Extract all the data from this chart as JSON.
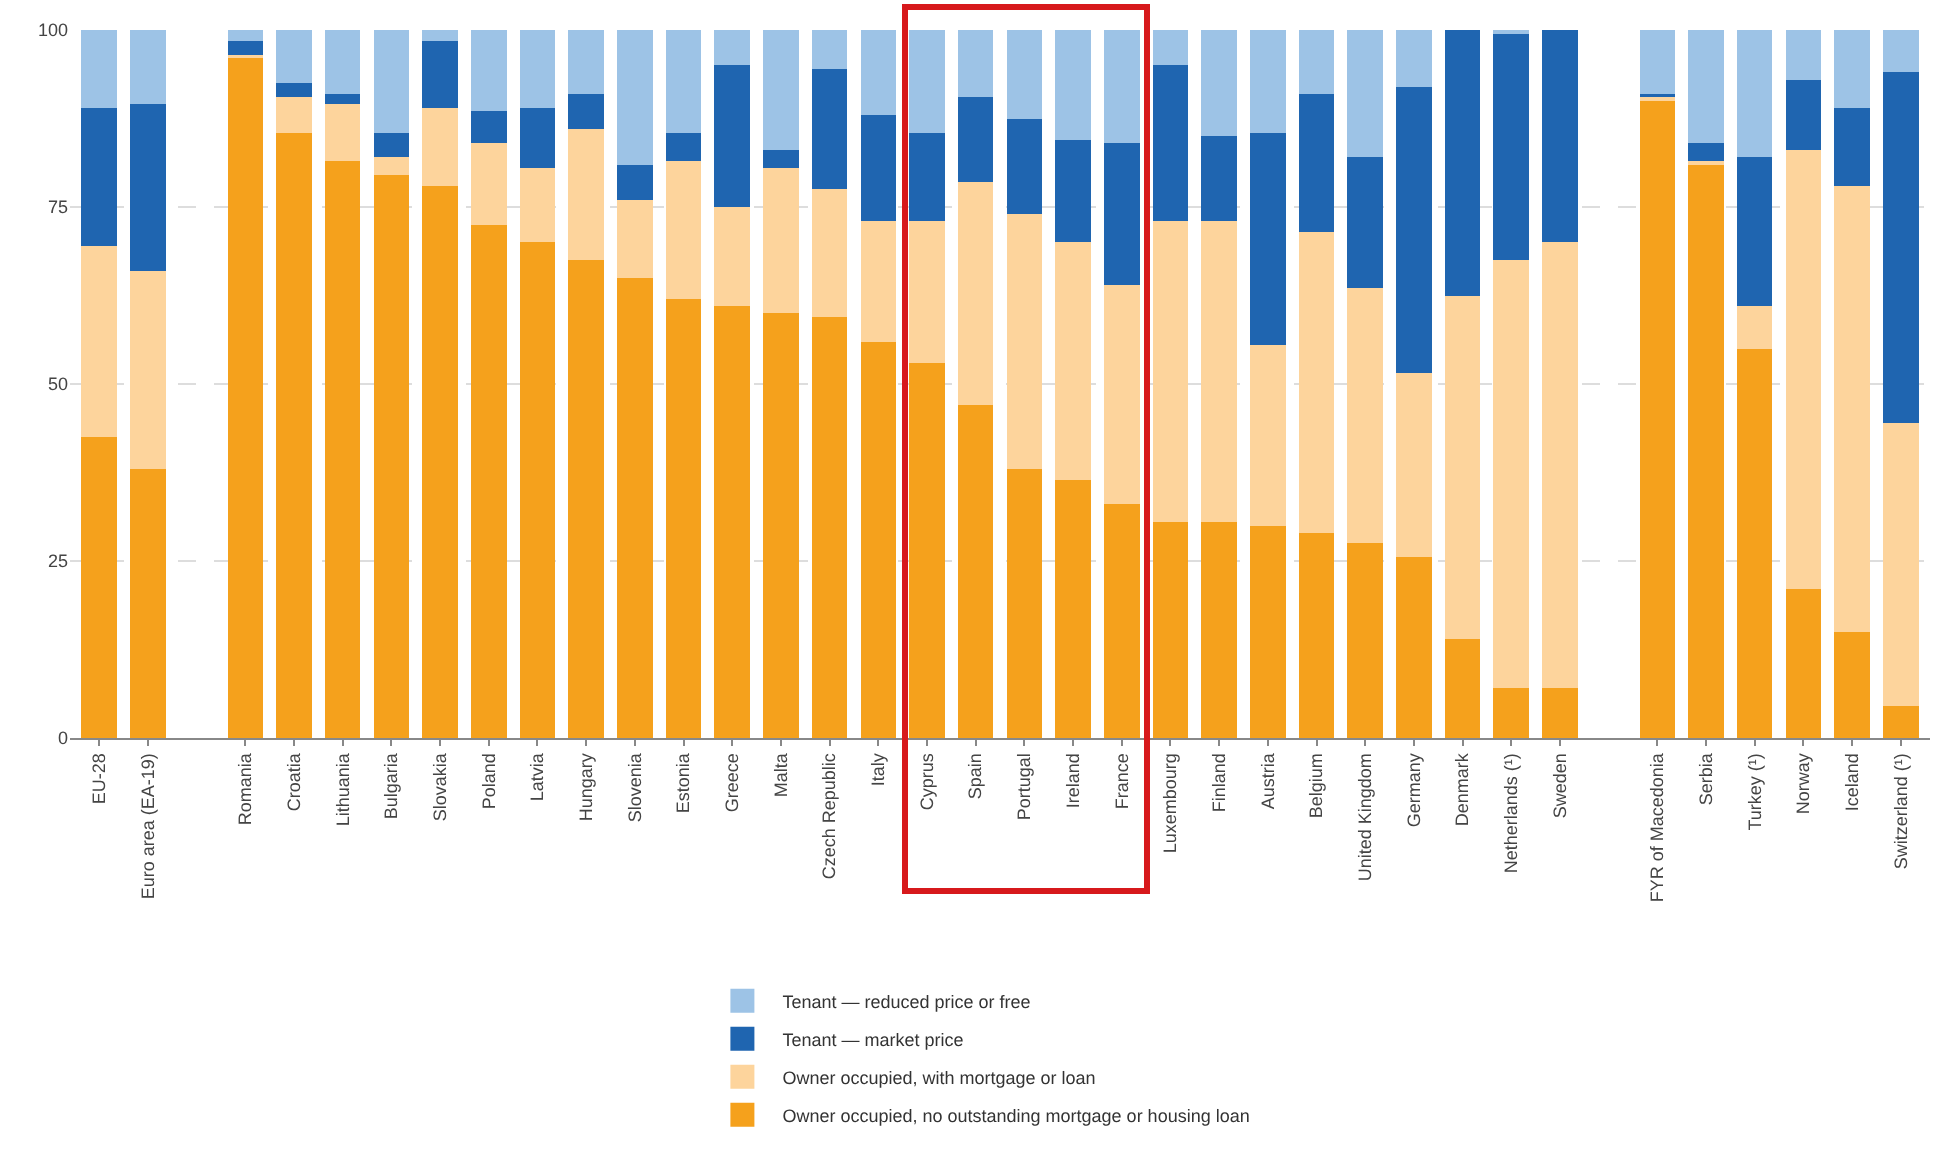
{
  "chart_data": {
    "type": "bar",
    "stacked": true,
    "categories": [
      "EU-28",
      "Euro area (EA-19)",
      null,
      "Romania",
      "Croatia",
      "Lithuania",
      "Bulgaria",
      "Slovakia",
      "Poland",
      "Latvia",
      "Hungary",
      "Slovenia",
      "Estonia",
      "Greece",
      "Malta",
      "Czech Republic",
      "Italy",
      "Cyprus",
      "Spain",
      "Portugal",
      "Ireland",
      "France",
      "Luxembourg",
      "Finland",
      "Austria",
      "Belgium",
      "United Kingdom",
      "Germany",
      "Denmark",
      "Netherlands (¹)",
      "Sweden",
      null,
      "FYR of Macedonia",
      "Serbia",
      "Turkey (¹)",
      "Norway",
      "Iceland",
      "Switzerland (¹)"
    ],
    "series": [
      {
        "name": "Owner occupied, no outstanding mortgage or housing loan",
        "color": "#f5a11c",
        "values": [
          42.5,
          38,
          null,
          96,
          85.5,
          81.5,
          79.5,
          78,
          72.5,
          70,
          67.5,
          65,
          62,
          61,
          60,
          59.5,
          56,
          53,
          47,
          38,
          36.5,
          33,
          30.5,
          30.5,
          30,
          29,
          27.5,
          25.5,
          14,
          7,
          7,
          null,
          90,
          81,
          55,
          21,
          15,
          4.5
        ]
      },
      {
        "name": "Owner occupied, with mortgage or loan",
        "color": "#fdd49c",
        "values": [
          27,
          28,
          null,
          0.5,
          5,
          8,
          2.5,
          11,
          11.5,
          10.5,
          18.5,
          11,
          19.5,
          14,
          20.5,
          18,
          17,
          20,
          31.5,
          36,
          33.5,
          31,
          42.5,
          42.5,
          25.5,
          42.5,
          36,
          26,
          48.5,
          60.5,
          63,
          null,
          0.5,
          0.5,
          6,
          62,
          63,
          40
        ]
      },
      {
        "name": "Tenant — market price",
        "color": "#1f65b0",
        "values": [
          19.5,
          23.5,
          null,
          2,
          2,
          1.5,
          3.5,
          9.5,
          4.5,
          8.5,
          5,
          5,
          4,
          20,
          2.5,
          17,
          15,
          12.5,
          12,
          13.5,
          14.5,
          20,
          22,
          12,
          30,
          19.5,
          18.5,
          40.5,
          37.5,
          32,
          30,
          null,
          0.5,
          2.5,
          21,
          10,
          11,
          49.5
        ]
      },
      {
        "name": "Tenant — reduced price or free",
        "color": "#9dc3e6",
        "values": [
          11,
          10.5,
          null,
          1.5,
          7.5,
          9,
          14.5,
          1.5,
          11.5,
          11,
          9,
          19,
          14.5,
          5,
          17,
          5.5,
          12,
          14.5,
          9.5,
          12.5,
          15.5,
          16,
          5,
          15,
          14.5,
          9,
          18,
          8,
          0,
          0.5,
          0,
          null,
          9,
          16,
          18,
          7,
          11,
          6
        ]
      }
    ],
    "ylim": [
      0,
      100
    ],
    "yticks": [
      0,
      25,
      50,
      75,
      100
    ],
    "grid": "y",
    "legend": "bottom"
  }
}
